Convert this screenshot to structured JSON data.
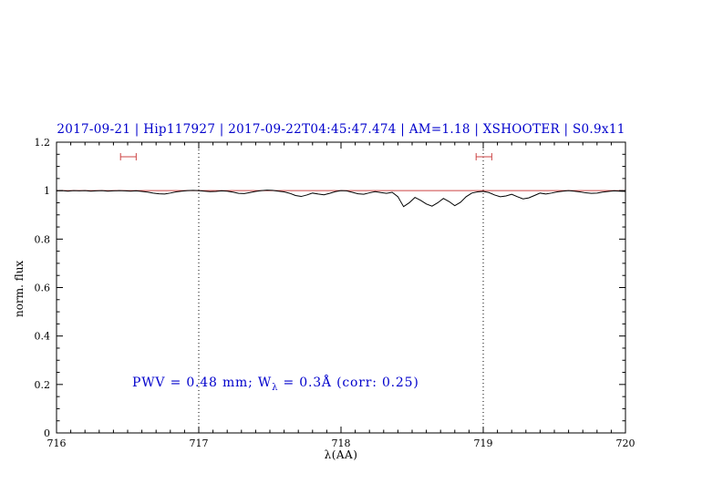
{
  "title": "2017-09-21 | Hip117927 | 2017-09-22T04:45:47.474 | AM=1.18 | XSHOOTER | S0.9x11",
  "annotation": {
    "prefix": "PWV = 0.48 mm; W",
    "sub": "λ",
    "suffix": " = 0.3Å (corr: 0.25)"
  },
  "colors": {
    "title_text": "#0000cc",
    "annotation_text": "#0000cc",
    "continuum": "#cc4444",
    "marker": "#cc4444",
    "spectrum": "#000000",
    "frame": "#000000",
    "dotted_line": "#000000"
  },
  "chart_data": {
    "type": "line",
    "title": "2017-09-21 | Hip117927 | 2017-09-22T04:45:47.474 | AM=1.18 | XSHOOTER | S0.9x11",
    "xlabel": "λ(AA)",
    "ylabel": "norm. flux",
    "xlim": [
      716,
      720
    ],
    "ylim": [
      0,
      1.2
    ],
    "x_ticks": [
      716,
      717,
      718,
      719,
      720
    ],
    "y_ticks": [
      0,
      0.2,
      0.4,
      0.6,
      0.8,
      1,
      1.2
    ],
    "x_minor_step": 0.1,
    "y_minor_step": 0.05,
    "grid": false,
    "legend": "none",
    "dotted_vlines": [
      717,
      719
    ],
    "continuum_y": 1.0,
    "range_markers": [
      {
        "x1": 716.45,
        "x2": 716.56,
        "y": 1.14
      },
      {
        "x1": 718.95,
        "x2": 719.06,
        "y": 1.14
      }
    ],
    "series": [
      {
        "name": "observed-spectrum",
        "color": "#000000",
        "points": [
          [
            716.0,
            0.999
          ],
          [
            716.04,
            1.0
          ],
          [
            716.08,
            0.998
          ],
          [
            716.12,
            1.0
          ],
          [
            716.16,
            0.999
          ],
          [
            716.2,
            1.0
          ],
          [
            716.24,
            0.998
          ],
          [
            716.28,
            0.999
          ],
          [
            716.32,
            1.0
          ],
          [
            716.36,
            0.998
          ],
          [
            716.4,
            0.999
          ],
          [
            716.44,
            1.0
          ],
          [
            716.48,
            0.999
          ],
          [
            716.52,
            0.998
          ],
          [
            716.56,
            0.999
          ],
          [
            716.6,
            0.997
          ],
          [
            716.64,
            0.994
          ],
          [
            716.68,
            0.99
          ],
          [
            716.72,
            0.987
          ],
          [
            716.76,
            0.986
          ],
          [
            716.8,
            0.99
          ],
          [
            716.84,
            0.995
          ],
          [
            716.88,
            0.998
          ],
          [
            716.92,
            1.0
          ],
          [
            716.96,
            1.001
          ],
          [
            717.0,
            1.0
          ],
          [
            717.04,
            0.998
          ],
          [
            717.08,
            0.996
          ],
          [
            717.12,
            0.997
          ],
          [
            717.16,
            0.999
          ],
          [
            717.2,
            0.998
          ],
          [
            717.24,
            0.994
          ],
          [
            717.28,
            0.989
          ],
          [
            717.32,
            0.988
          ],
          [
            717.36,
            0.992
          ],
          [
            717.4,
            0.997
          ],
          [
            717.44,
            1.0
          ],
          [
            717.48,
            1.002
          ],
          [
            717.52,
            1.001
          ],
          [
            717.56,
            0.998
          ],
          [
            717.6,
            0.995
          ],
          [
            717.64,
            0.989
          ],
          [
            717.68,
            0.98
          ],
          [
            717.72,
            0.976
          ],
          [
            717.76,
            0.982
          ],
          [
            717.8,
            0.99
          ],
          [
            717.84,
            0.986
          ],
          [
            717.88,
            0.983
          ],
          [
            717.92,
            0.989
          ],
          [
            717.96,
            0.996
          ],
          [
            718.0,
            1.0
          ],
          [
            718.04,
            0.999
          ],
          [
            718.08,
            0.993
          ],
          [
            718.12,
            0.987
          ],
          [
            718.16,
            0.985
          ],
          [
            718.2,
            0.991
          ],
          [
            718.24,
            0.996
          ],
          [
            718.28,
            0.992
          ],
          [
            718.32,
            0.989
          ],
          [
            718.36,
            0.993
          ],
          [
            718.4,
            0.975
          ],
          [
            718.44,
            0.934
          ],
          [
            718.48,
            0.95
          ],
          [
            718.52,
            0.972
          ],
          [
            718.56,
            0.96
          ],
          [
            718.6,
            0.945
          ],
          [
            718.64,
            0.936
          ],
          [
            718.68,
            0.95
          ],
          [
            718.72,
            0.968
          ],
          [
            718.76,
            0.955
          ],
          [
            718.8,
            0.938
          ],
          [
            718.84,
            0.952
          ],
          [
            718.88,
            0.975
          ],
          [
            718.92,
            0.99
          ],
          [
            718.96,
            0.995
          ],
          [
            719.0,
            0.997
          ],
          [
            719.04,
            0.992
          ],
          [
            719.08,
            0.982
          ],
          [
            719.12,
            0.975
          ],
          [
            719.16,
            0.978
          ],
          [
            719.2,
            0.985
          ],
          [
            719.24,
            0.975
          ],
          [
            719.28,
            0.966
          ],
          [
            719.32,
            0.97
          ],
          [
            719.36,
            0.98
          ],
          [
            719.4,
            0.99
          ],
          [
            719.44,
            0.986
          ],
          [
            719.48,
            0.99
          ],
          [
            719.52,
            0.995
          ],
          [
            719.56,
            0.998
          ],
          [
            719.6,
            1.0
          ],
          [
            719.64,
            0.998
          ],
          [
            719.68,
            0.995
          ],
          [
            719.72,
            0.991
          ],
          [
            719.76,
            0.989
          ],
          [
            719.8,
            0.99
          ],
          [
            719.84,
            0.994
          ],
          [
            719.88,
            0.997
          ],
          [
            719.92,
            0.999
          ],
          [
            719.96,
            0.998
          ],
          [
            720.0,
            0.997
          ]
        ]
      },
      {
        "name": "continuum-fit",
        "color": "#cc4444",
        "points": [
          [
            716.0,
            1.0
          ],
          [
            720.0,
            1.0
          ]
        ]
      }
    ]
  }
}
